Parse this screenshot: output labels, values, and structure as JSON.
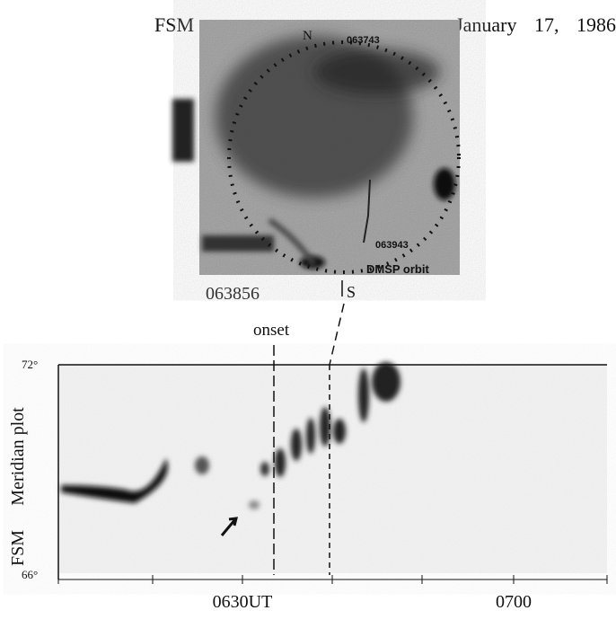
{
  "header": {
    "station": "FSM",
    "date": "January 17, 1986"
  },
  "image": {
    "north": "N",
    "south": "S",
    "time_start": "063743",
    "time_end": "063943",
    "orbit_label": "DMSP orbit",
    "time_mid": "063856"
  },
  "meridian_plot": {
    "onset": "onset",
    "lat_top": "72°",
    "lat_bottom": "66°",
    "ylabel": "Meridian plot",
    "station": "FSM",
    "xtick_1": "0630UT",
    "xtick_2": "0700"
  }
}
